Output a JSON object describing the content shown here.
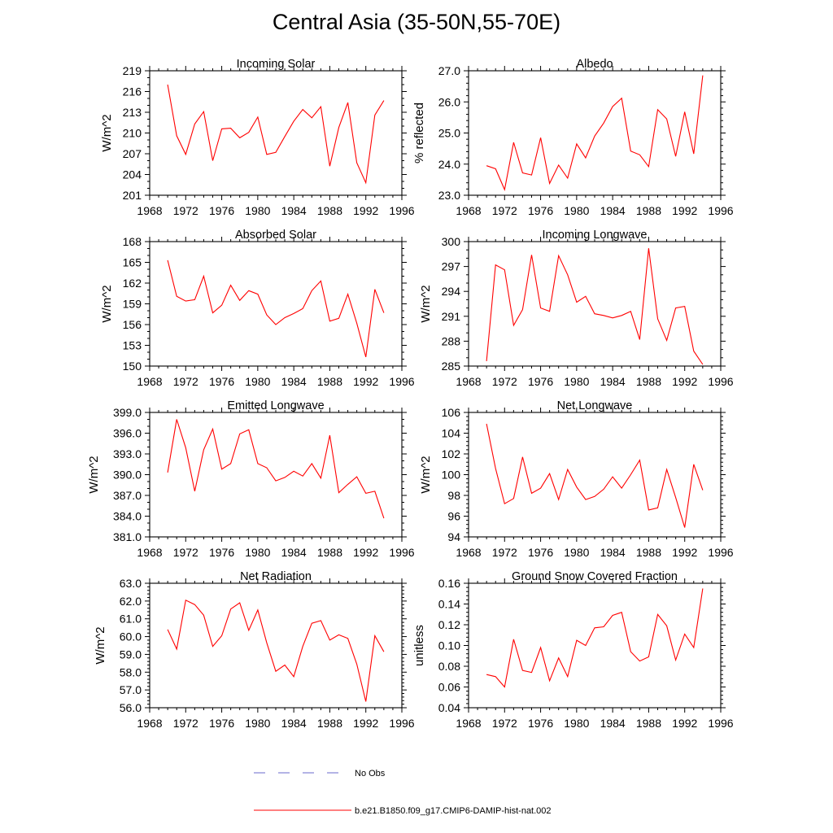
{
  "page": {
    "title": "Central Asia (35-50N,55-70E)",
    "legend": [
      {
        "label": "No Obs",
        "color": "#6a6acd",
        "style": "dashed"
      },
      {
        "label": "b.e21.B1850.f09_g17.CMIP6-DAMIP-hist-nat.002",
        "color": "#ff0000",
        "style": "solid"
      }
    ]
  },
  "chart_data": [
    {
      "type": "line",
      "title": "Incoming Solar",
      "ylabel": "W/m^2",
      "xlim": [
        1968,
        1996
      ],
      "xticks": [
        1968,
        1972,
        1976,
        1980,
        1984,
        1988,
        1992,
        1996
      ],
      "ylim": [
        201,
        219
      ],
      "yticks": [
        "201",
        "204",
        "207",
        "210",
        "213",
        "216",
        "219"
      ],
      "series": [
        {
          "color": "#ff0000",
          "x": [
            1970,
            1971,
            1972,
            1973,
            1974,
            1975,
            1976,
            1977,
            1978,
            1979,
            1980,
            1981,
            1982,
            1983,
            1984,
            1985,
            1986,
            1987,
            1988,
            1989,
            1990,
            1991,
            1992,
            1993,
            1994
          ],
          "y": [
            217.0,
            209.6,
            206.9,
            211.3,
            213.1,
            206.0,
            210.6,
            210.7,
            209.3,
            210.1,
            212.3,
            206.9,
            207.2,
            209.5,
            211.7,
            213.4,
            212.2,
            213.8,
            205.2,
            210.8,
            214.4,
            205.7,
            202.8,
            212.6,
            214.7
          ]
        }
      ]
    },
    {
      "type": "line",
      "title": "Albedo",
      "ylabel": "% reflected",
      "xlim": [
        1968,
        1996
      ],
      "xticks": [
        1968,
        1972,
        1976,
        1980,
        1984,
        1988,
        1992,
        1996
      ],
      "ylim": [
        23.0,
        27.0
      ],
      "yticks": [
        "23.0",
        "24.0",
        "25.0",
        "26.0",
        "27.0"
      ],
      "series": [
        {
          "color": "#ff0000",
          "x": [
            1970,
            1971,
            1972,
            1973,
            1974,
            1975,
            1976,
            1977,
            1978,
            1979,
            1980,
            1981,
            1982,
            1983,
            1984,
            1985,
            1986,
            1987,
            1988,
            1989,
            1990,
            1991,
            1992,
            1993,
            1994
          ],
          "y": [
            23.95,
            23.85,
            23.18,
            24.7,
            23.72,
            23.65,
            24.85,
            23.38,
            23.97,
            23.55,
            24.65,
            24.2,
            24.9,
            25.32,
            25.85,
            26.12,
            24.42,
            24.3,
            23.92,
            25.75,
            25.45,
            24.25,
            25.68,
            24.33,
            26.85
          ]
        }
      ]
    },
    {
      "type": "line",
      "title": "Absorbed Solar",
      "ylabel": "W/m^2",
      "xlim": [
        1968,
        1996
      ],
      "xticks": [
        1968,
        1972,
        1976,
        1980,
        1984,
        1988,
        1992,
        1996
      ],
      "ylim": [
        150,
        168
      ],
      "yticks": [
        "150",
        "153",
        "156",
        "159",
        "162",
        "165",
        "168"
      ],
      "series": [
        {
          "color": "#ff0000",
          "x": [
            1970,
            1971,
            1972,
            1973,
            1974,
            1975,
            1976,
            1977,
            1978,
            1979,
            1980,
            1981,
            1982,
            1983,
            1984,
            1985,
            1986,
            1987,
            1988,
            1989,
            1990,
            1991,
            1992,
            1993,
            1994
          ],
          "y": [
            165.3,
            160.1,
            159.4,
            159.6,
            163.0,
            157.7,
            158.8,
            161.7,
            159.5,
            160.9,
            160.4,
            157.4,
            156.0,
            157.0,
            157.6,
            158.3,
            160.9,
            162.3,
            156.5,
            156.9,
            160.4,
            156.2,
            151.3,
            161.1,
            157.7
          ]
        }
      ]
    },
    {
      "type": "line",
      "title": "Incoming Longwave",
      "ylabel": "W/m^2",
      "xlim": [
        1968,
        1996
      ],
      "xticks": [
        1968,
        1972,
        1976,
        1980,
        1984,
        1988,
        1992,
        1996
      ],
      "ylim": [
        285,
        300
      ],
      "yticks": [
        "285",
        "288",
        "291",
        "294",
        "297",
        "300"
      ],
      "series": [
        {
          "color": "#ff0000",
          "x": [
            1970,
            1971,
            1972,
            1973,
            1974,
            1975,
            1976,
            1977,
            1978,
            1979,
            1980,
            1981,
            1982,
            1983,
            1984,
            1985,
            1986,
            1987,
            1988,
            1989,
            1990,
            1991,
            1992,
            1993,
            1994
          ],
          "y": [
            285.6,
            297.2,
            296.6,
            289.9,
            291.8,
            298.4,
            292.0,
            291.6,
            298.3,
            296.0,
            292.7,
            293.4,
            291.3,
            291.1,
            290.8,
            291.1,
            291.6,
            288.2,
            299.2,
            290.7,
            288.1,
            292.0,
            292.2,
            286.8,
            285.2
          ]
        }
      ]
    },
    {
      "type": "line",
      "title": "Emitted Longwave",
      "ylabel": "W/m^2",
      "xlim": [
        1968,
        1996
      ],
      "xticks": [
        1968,
        1972,
        1976,
        1980,
        1984,
        1988,
        1992,
        1996
      ],
      "ylim": [
        381.0,
        399.0
      ],
      "yticks": [
        "381.0",
        "384.0",
        "387.0",
        "390.0",
        "393.0",
        "396.0",
        "399.0"
      ],
      "series": [
        {
          "color": "#ff0000",
          "x": [
            1970,
            1971,
            1972,
            1973,
            1974,
            1975,
            1976,
            1977,
            1978,
            1979,
            1980,
            1981,
            1982,
            1983,
            1984,
            1985,
            1986,
            1987,
            1988,
            1989,
            1990,
            1991,
            1992,
            1993,
            1994
          ],
          "y": [
            390.3,
            398.0,
            393.9,
            387.6,
            393.6,
            396.6,
            390.8,
            391.6,
            395.9,
            396.5,
            391.6,
            391.0,
            389.1,
            389.6,
            390.5,
            389.8,
            391.6,
            389.5,
            395.7,
            387.4,
            388.6,
            389.7,
            387.3,
            387.6,
            383.7
          ]
        }
      ]
    },
    {
      "type": "line",
      "title": "Net Longwave",
      "ylabel": "W/m^2",
      "xlim": [
        1968,
        1996
      ],
      "xticks": [
        1968,
        1972,
        1976,
        1980,
        1984,
        1988,
        1992,
        1996
      ],
      "ylim": [
        94,
        106
      ],
      "yticks": [
        "94",
        "96",
        "98",
        "100",
        "102",
        "104",
        "106"
      ],
      "series": [
        {
          "color": "#ff0000",
          "x": [
            1970,
            1971,
            1972,
            1973,
            1974,
            1975,
            1976,
            1977,
            1978,
            1979,
            1980,
            1981,
            1982,
            1983,
            1984,
            1985,
            1986,
            1987,
            1988,
            1989,
            1990,
            1991,
            1992,
            1993,
            1994
          ],
          "y": [
            104.9,
            100.6,
            97.2,
            97.7,
            101.7,
            98.2,
            98.7,
            100.1,
            97.6,
            100.5,
            98.8,
            97.6,
            97.9,
            98.6,
            99.8,
            98.7,
            100.0,
            101.4,
            96.6,
            96.8,
            100.5,
            97.8,
            94.9,
            101.0,
            98.5
          ]
        }
      ]
    },
    {
      "type": "line",
      "title": "Net Radiation",
      "ylabel": "W/m^2",
      "xlim": [
        1968,
        1996
      ],
      "xticks": [
        1968,
        1972,
        1976,
        1980,
        1984,
        1988,
        1992,
        1996
      ],
      "ylim": [
        56.0,
        63.0
      ],
      "yticks": [
        "56.0",
        "57.0",
        "58.0",
        "59.0",
        "60.0",
        "61.0",
        "62.0",
        "63.0"
      ],
      "series": [
        {
          "color": "#ff0000",
          "x": [
            1970,
            1971,
            1972,
            1973,
            1974,
            1975,
            1976,
            1977,
            1978,
            1979,
            1980,
            1981,
            1982,
            1983,
            1984,
            1985,
            1986,
            1987,
            1988,
            1989,
            1990,
            1991,
            1992,
            1993,
            1994
          ],
          "y": [
            60.4,
            59.3,
            62.05,
            61.8,
            61.2,
            59.45,
            60.05,
            61.55,
            61.9,
            60.35,
            61.5,
            59.65,
            58.05,
            58.4,
            57.75,
            59.45,
            60.75,
            60.9,
            59.8,
            60.1,
            59.9,
            58.45,
            56.35,
            60.05,
            59.15
          ]
        }
      ]
    },
    {
      "type": "line",
      "title": "Ground Snow Covered Fraction",
      "ylabel": "unitless",
      "xlim": [
        1968,
        1996
      ],
      "xticks": [
        1968,
        1972,
        1976,
        1980,
        1984,
        1988,
        1992,
        1996
      ],
      "ylim": [
        0.04,
        0.16
      ],
      "yticks": [
        "0.04",
        "0.06",
        "0.08",
        "0.10",
        "0.12",
        "0.14",
        "0.16"
      ],
      "series": [
        {
          "color": "#ff0000",
          "x": [
            1970,
            1971,
            1972,
            1973,
            1974,
            1975,
            1976,
            1977,
            1978,
            1979,
            1980,
            1981,
            1982,
            1983,
            1984,
            1985,
            1986,
            1987,
            1988,
            1989,
            1990,
            1991,
            1992,
            1993,
            1994
          ],
          "y": [
            0.072,
            0.07,
            0.06,
            0.106,
            0.076,
            0.074,
            0.098,
            0.066,
            0.088,
            0.07,
            0.105,
            0.1,
            0.117,
            0.118,
            0.129,
            0.132,
            0.094,
            0.085,
            0.089,
            0.13,
            0.119,
            0.086,
            0.111,
            0.098,
            0.155
          ]
        }
      ]
    }
  ]
}
